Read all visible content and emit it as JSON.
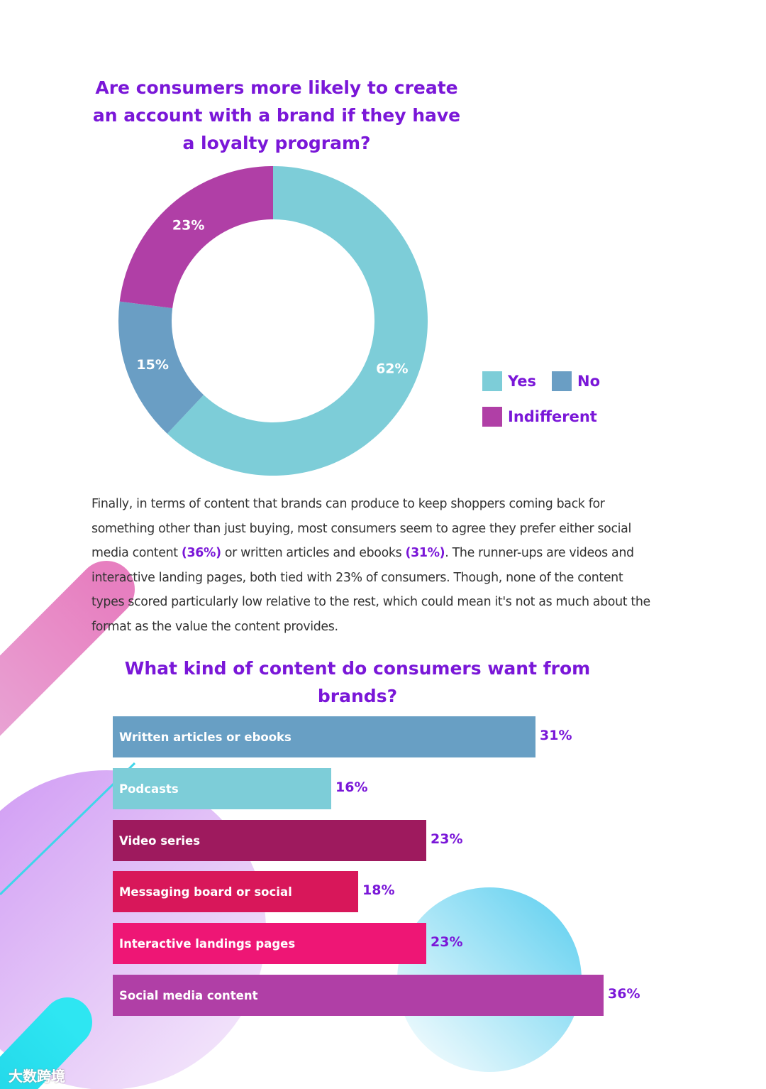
{
  "donut_title": "Are consumers more likely to create an account with a brand if they have a loyalty program?",
  "donut_title_lines": [
    "Are consumers more likely to create",
    "an account with a brand if they have",
    "a loyalty program?"
  ],
  "legend": {
    "yes": "Yes",
    "no": "No",
    "indifferent": "Indifferent"
  },
  "paragraph": {
    "p1": "Finally, in terms of content that brands can produce to keep shoppers coming back for something other than just buying, most consumers seem to agree they prefer either social media content ",
    "h1": "(36%)",
    "p2": " or written articles and ebooks ",
    "h2": "(31%)",
    "p3": ". The runner-ups are videos and interactive landing pages, both tied with 23% of consumers. Though, none of the content types scored particularly low relative to the rest, which could mean it's not as much about the format as the value the content provides."
  },
  "bar_title_lines": [
    "What kind of content do consumers want from",
    "brands?"
  ],
  "watermark": "大数跨境",
  "colors": {
    "title": "#7a17d8",
    "yes": "#7dcdd8",
    "no": "#6a9ec4",
    "indifferent": "#b03fa6"
  },
  "chart_data": [
    {
      "type": "pie",
      "title": "Are consumers more likely to create an account with a brand if they have a loyalty program?",
      "categories": [
        "Yes",
        "No",
        "Indifferent"
      ],
      "values": [
        62,
        15,
        23
      ],
      "labels": [
        "62%",
        "15%",
        "23%"
      ],
      "colors": [
        "#7dcdd8",
        "#6a9ec4",
        "#b03fa6"
      ],
      "donut": true,
      "legend": "right"
    },
    {
      "type": "bar",
      "orientation": "horizontal",
      "title": "What kind of content do consumers want from brands?",
      "categories": [
        "Written articles or ebooks",
        "Podcasts",
        "Video series",
        "Messaging board or social",
        "Interactive landings pages",
        "Social media content"
      ],
      "values": [
        31,
        16,
        23,
        18,
        23,
        36
      ],
      "labels": [
        "31%",
        "16%",
        "23%",
        "18%",
        "23%",
        "36%"
      ],
      "colors": [
        "#689fc4",
        "#7dcdd8",
        "#9e1a5e",
        "#d8175a",
        "#ee1675",
        "#b03fa6"
      ],
      "xlim": [
        0,
        36
      ]
    }
  ]
}
